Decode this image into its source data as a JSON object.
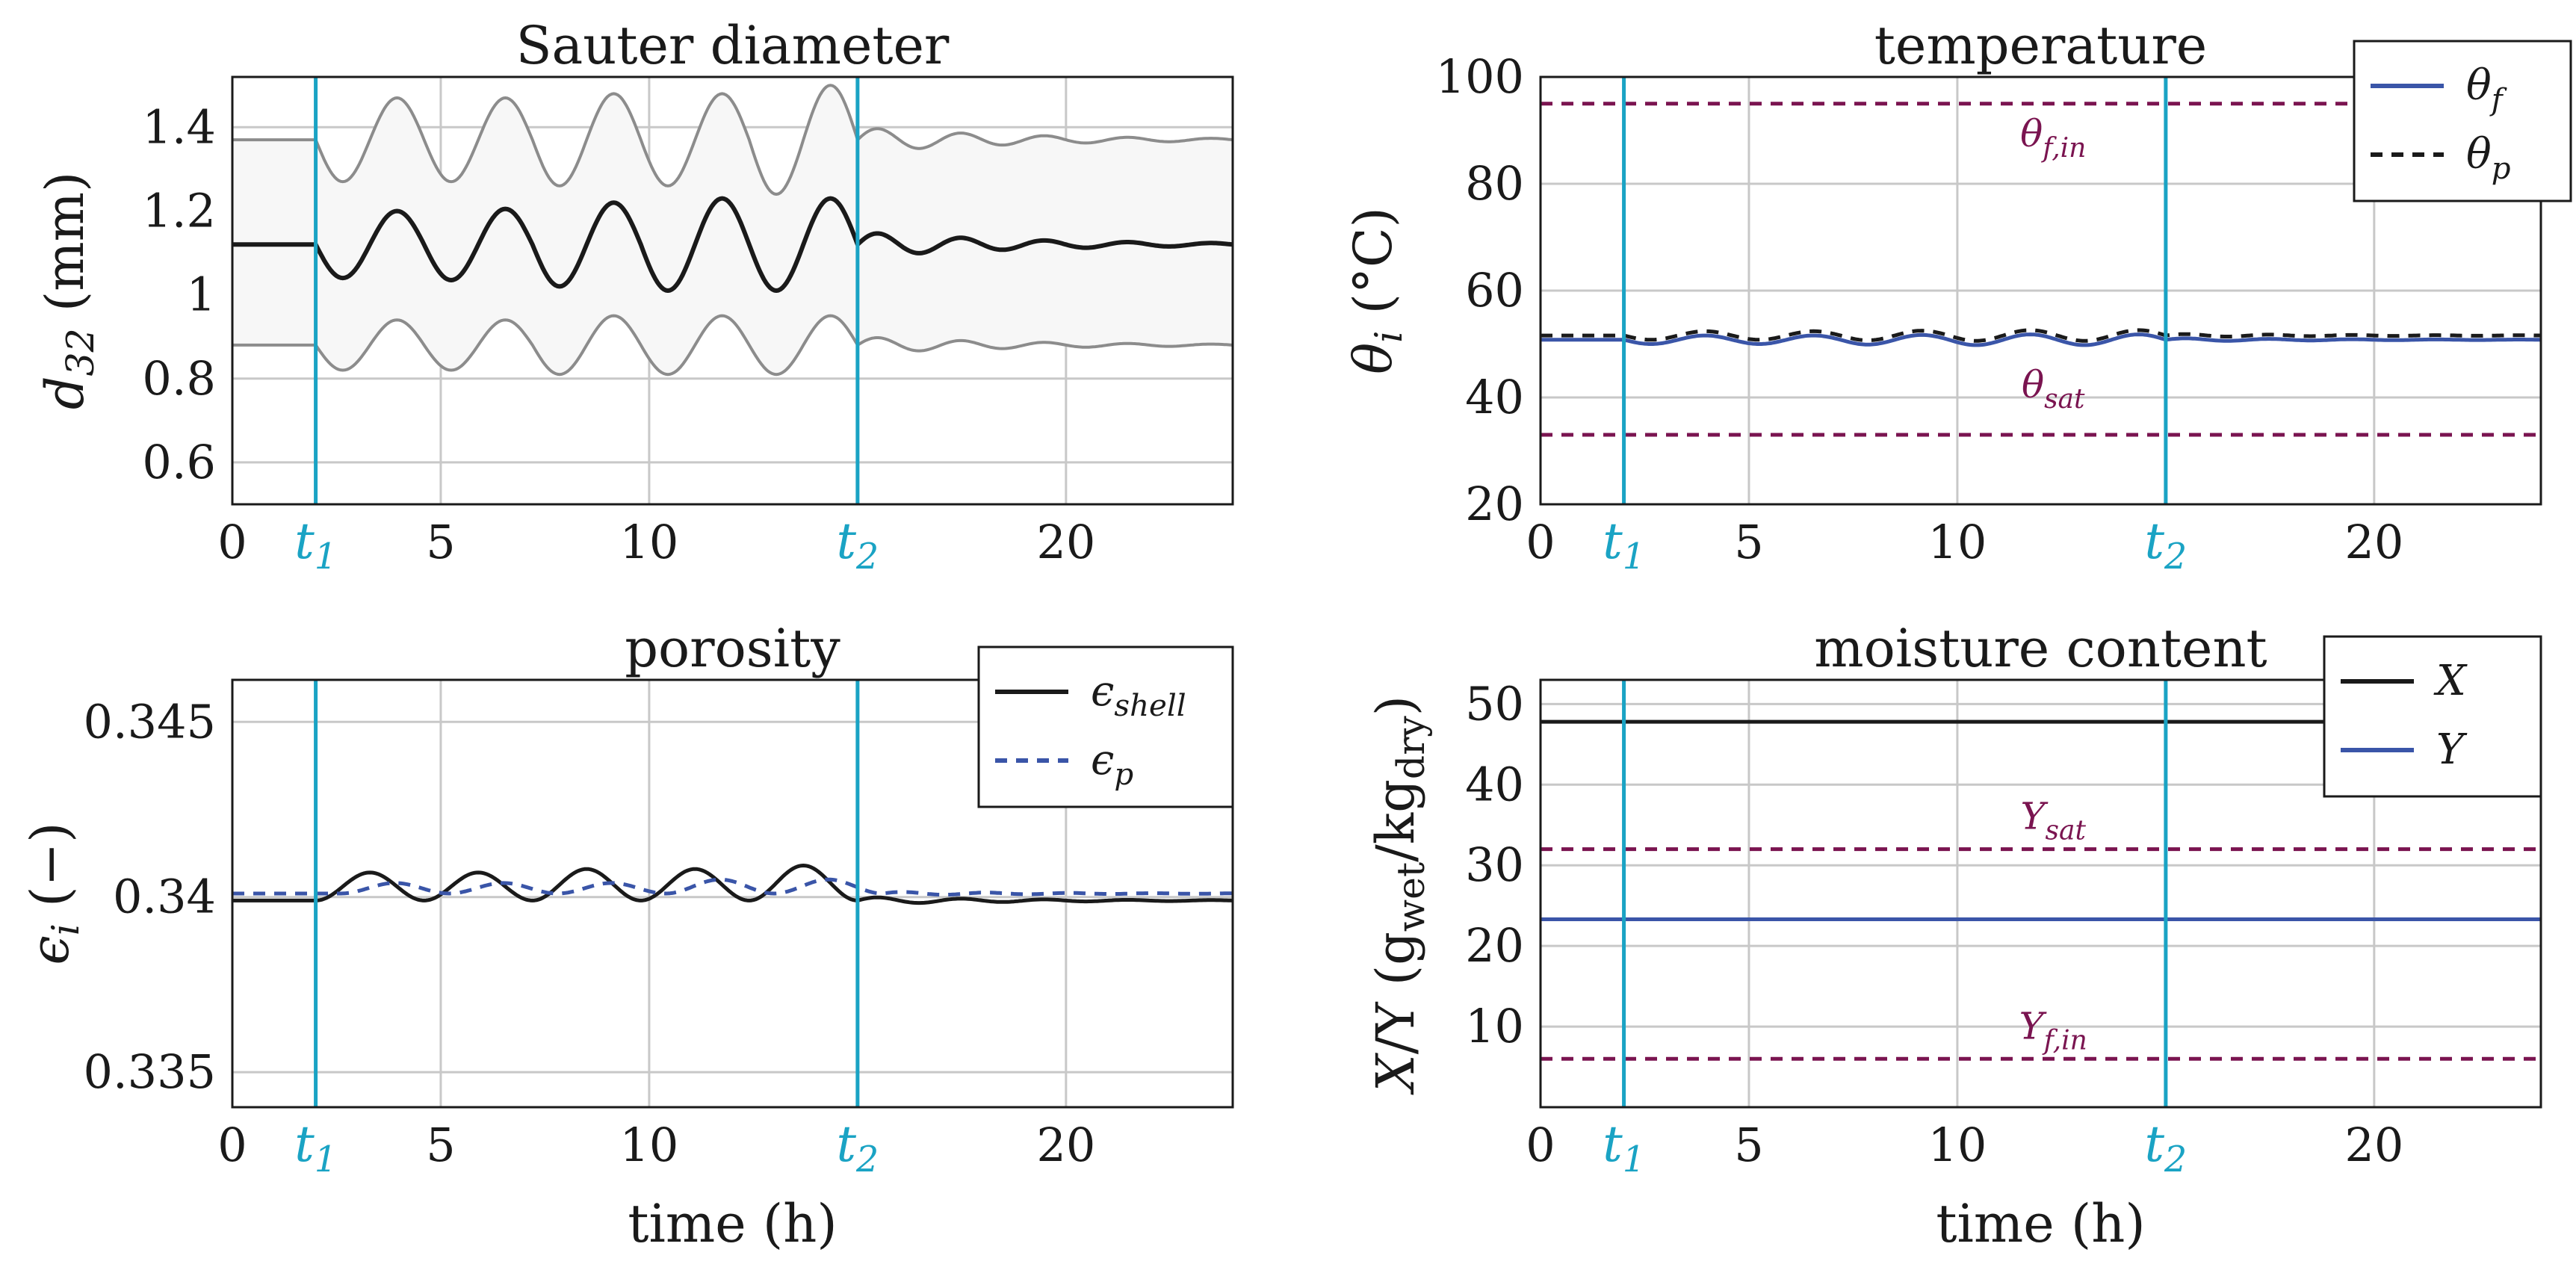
{
  "figure": {
    "xlabel": "time (h)",
    "event_lines": [
      {
        "label": "t",
        "sub": "1",
        "x": 2
      },
      {
        "label": "t",
        "sub": "2",
        "x": 15
      }
    ],
    "colors": {
      "event": "#1aa3c4",
      "dashed_ref": "#7a1450",
      "black": "#1a1a1a",
      "blue": "#3a55a8",
      "gray": "#8c8c8c",
      "band": "#f7f7f7",
      "grid": "#c8c8c8"
    }
  },
  "chart_data": [
    {
      "id": "sauter",
      "type": "line",
      "title": "Sauter diameter",
      "ylabel": {
        "main": "d",
        "sub": "32",
        "rest": " (mm)"
      },
      "xlim": [
        0,
        24
      ],
      "ylim": [
        0.5,
        1.52
      ],
      "xticks": [
        0,
        5,
        10,
        20
      ],
      "yticks": [
        0.6,
        0.8,
        1,
        1.2,
        1.4
      ],
      "ytick_labels": [
        "0.6",
        "0.8",
        "1",
        "1.2",
        "1.4"
      ],
      "show_x_label": false,
      "series": [
        {
          "name": "d32 mean",
          "color": "#1a1a1a",
          "width": 6,
          "dash": "",
          "type": "osc",
          "base": 1.12,
          "t_start": 2,
          "t_end": 15,
          "amplitude": [
            0.08,
            0.085,
            0.1,
            0.11,
            0.11
          ],
          "periods": 2.6,
          "decay_after": 0.03,
          "after_period": 2.0
        },
        {
          "name": "d32 upper",
          "color": "#8c8c8c",
          "width": 4,
          "dash": "",
          "type": "osc",
          "base": 1.37,
          "t_start": 2,
          "t_end": 15,
          "amplitude": [
            0.1,
            0.1,
            0.11,
            0.11,
            0.13
          ],
          "periods": 2.6,
          "decay_after": 0.03,
          "after_period": 2.0
        },
        {
          "name": "d32 lower",
          "color": "#8c8c8c",
          "width": 4,
          "dash": "",
          "type": "osc",
          "base": 0.88,
          "t_start": 2,
          "t_end": 15,
          "amplitude": [
            0.06,
            0.06,
            0.07,
            0.07,
            0.07
          ],
          "periods": 2.6,
          "decay_after": 0.02,
          "after_period": 2.0
        }
      ],
      "band": [
        "d32 upper",
        "d32 lower"
      ]
    },
    {
      "id": "temperature",
      "type": "line",
      "title": "temperature",
      "ylabel": {
        "main": "θ",
        "sub": "i",
        "rest": " (°C)"
      },
      "xlim": [
        0,
        24
      ],
      "ylim": [
        20,
        100
      ],
      "xticks": [
        0,
        5,
        10,
        20
      ],
      "yticks": [
        20,
        40,
        60,
        80,
        100
      ],
      "ytick_labels": [
        "20",
        "40",
        "60",
        "80",
        "100"
      ],
      "show_x_label": false,
      "series": [
        {
          "name": "θf",
          "color": "#3a55a8",
          "width": 5,
          "dash": "",
          "type": "osc",
          "base": 50.8,
          "t_start": 2,
          "t_end": 15,
          "amplitude": [
            0.8,
            0.8,
            0.9,
            1.0,
            1.0
          ],
          "periods": 2.6,
          "decay_after": 0.3,
          "after_period": 2.0
        },
        {
          "name": "θp",
          "color": "#1a1a1a",
          "width": 5,
          "dash": "16 12",
          "type": "osc",
          "base": 51.6,
          "t_start": 2,
          "t_end": 15,
          "amplitude": [
            0.8,
            0.8,
            0.9,
            1.0,
            1.0
          ],
          "periods": 2.6,
          "decay_after": 0.3,
          "after_period": 2.0
        },
        {
          "name": "θf,in",
          "color": "#7a1450",
          "width": 5,
          "dash": "16 12",
          "type": "const",
          "value": 95
        },
        {
          "name": "θsat",
          "color": "#7a1450",
          "width": 5,
          "dash": "16 12",
          "type": "const",
          "value": 33
        }
      ],
      "annotations": [
        {
          "main": "θ",
          "sub": "f,in",
          "x": 12.3,
          "y": 87
        },
        {
          "main": "θ",
          "sub": "sat",
          "x": 12.3,
          "y": 40
        }
      ],
      "legend": {
        "position": "top-right",
        "entries": [
          {
            "main": "θ",
            "sub": "f",
            "color": "#3a55a8",
            "dash": ""
          },
          {
            "main": "θ",
            "sub": "p",
            "color": "#1a1a1a",
            "dash": "16 12"
          }
        ]
      }
    },
    {
      "id": "porosity",
      "type": "line",
      "title": "porosity",
      "ylabel": {
        "main": "ϵ",
        "sub": "i",
        "rest": " (−)"
      },
      "xlim": [
        0,
        24
      ],
      "ylim": [
        0.334,
        0.3462
      ],
      "xticks": [
        0,
        5,
        10,
        20
      ],
      "yticks": [
        0.335,
        0.34,
        0.345
      ],
      "ytick_labels": [
        "0.335",
        "0.34",
        "0.345"
      ],
      "show_x_label": true,
      "series": [
        {
          "name": "ϵshell",
          "color": "#1a1a1a",
          "width": 5,
          "dash": "",
          "type": "osc_pos",
          "base": 0.3399,
          "t_start": 2,
          "t_end": 15,
          "amplitude": [
            0.0008,
            0.0008,
            0.0009,
            0.0009,
            0.001
          ],
          "periods": 2.6,
          "decay_after": 0.0001,
          "after_period": 2.0
        },
        {
          "name": "ϵp",
          "color": "#3a55a8",
          "width": 5,
          "dash": "16 12",
          "type": "osc_pos",
          "base": 0.3401,
          "t_start": 2.6,
          "t_end": 15.6,
          "amplitude": [
            0.0003,
            0.0003,
            0.0003,
            0.0004,
            0.0004
          ],
          "periods": 2.6,
          "decay_after": 5e-05,
          "after_period": 2.0
        }
      ],
      "legend": {
        "position": "top-right",
        "entries": [
          {
            "main": "ϵ",
            "sub": "shell",
            "color": "#1a1a1a",
            "dash": ""
          },
          {
            "main": "ϵ",
            "sub": "p",
            "color": "#3a55a8",
            "dash": "16 12"
          }
        ]
      }
    },
    {
      "id": "moisture",
      "type": "line",
      "title": "moisture content",
      "ylabel": {
        "main": "X",
        "sub": "",
        "rest": "/Y (g",
        "sub2": "wet",
        "mid": "/kg",
        "sub3": "dry",
        "end": ")"
      },
      "xlim": [
        0,
        24
      ],
      "ylim": [
        0,
        53
      ],
      "xticks": [
        0,
        5,
        10,
        20
      ],
      "yticks": [
        10,
        20,
        30,
        40,
        50
      ],
      "ytick_labels": [
        "10",
        "20",
        "30",
        "40",
        "50"
      ],
      "show_x_label": true,
      "series": [
        {
          "name": "X",
          "color": "#1a1a1a",
          "width": 5,
          "dash": "",
          "type": "const",
          "value": 47.8
        },
        {
          "name": "Y",
          "color": "#3a55a8",
          "width": 5,
          "dash": "",
          "type": "const",
          "value": 23.3
        },
        {
          "name": "Ysat",
          "color": "#7a1450",
          "width": 5,
          "dash": "16 12",
          "type": "const",
          "value": 32
        },
        {
          "name": "Yf,in",
          "color": "#7a1450",
          "width": 5,
          "dash": "16 12",
          "type": "const",
          "value": 6
        }
      ],
      "annotations": [
        {
          "main": "Y",
          "sub": "sat",
          "x": 12.3,
          "y": 34.5
        },
        {
          "main": "Y",
          "sub": "f,in",
          "x": 12.3,
          "y": 8.5
        }
      ],
      "legend": {
        "position": "top-right",
        "entries": [
          {
            "main": "X",
            "sub": "",
            "color": "#1a1a1a",
            "dash": ""
          },
          {
            "main": "Y",
            "sub": "",
            "color": "#3a55a8",
            "dash": ""
          }
        ]
      }
    }
  ]
}
